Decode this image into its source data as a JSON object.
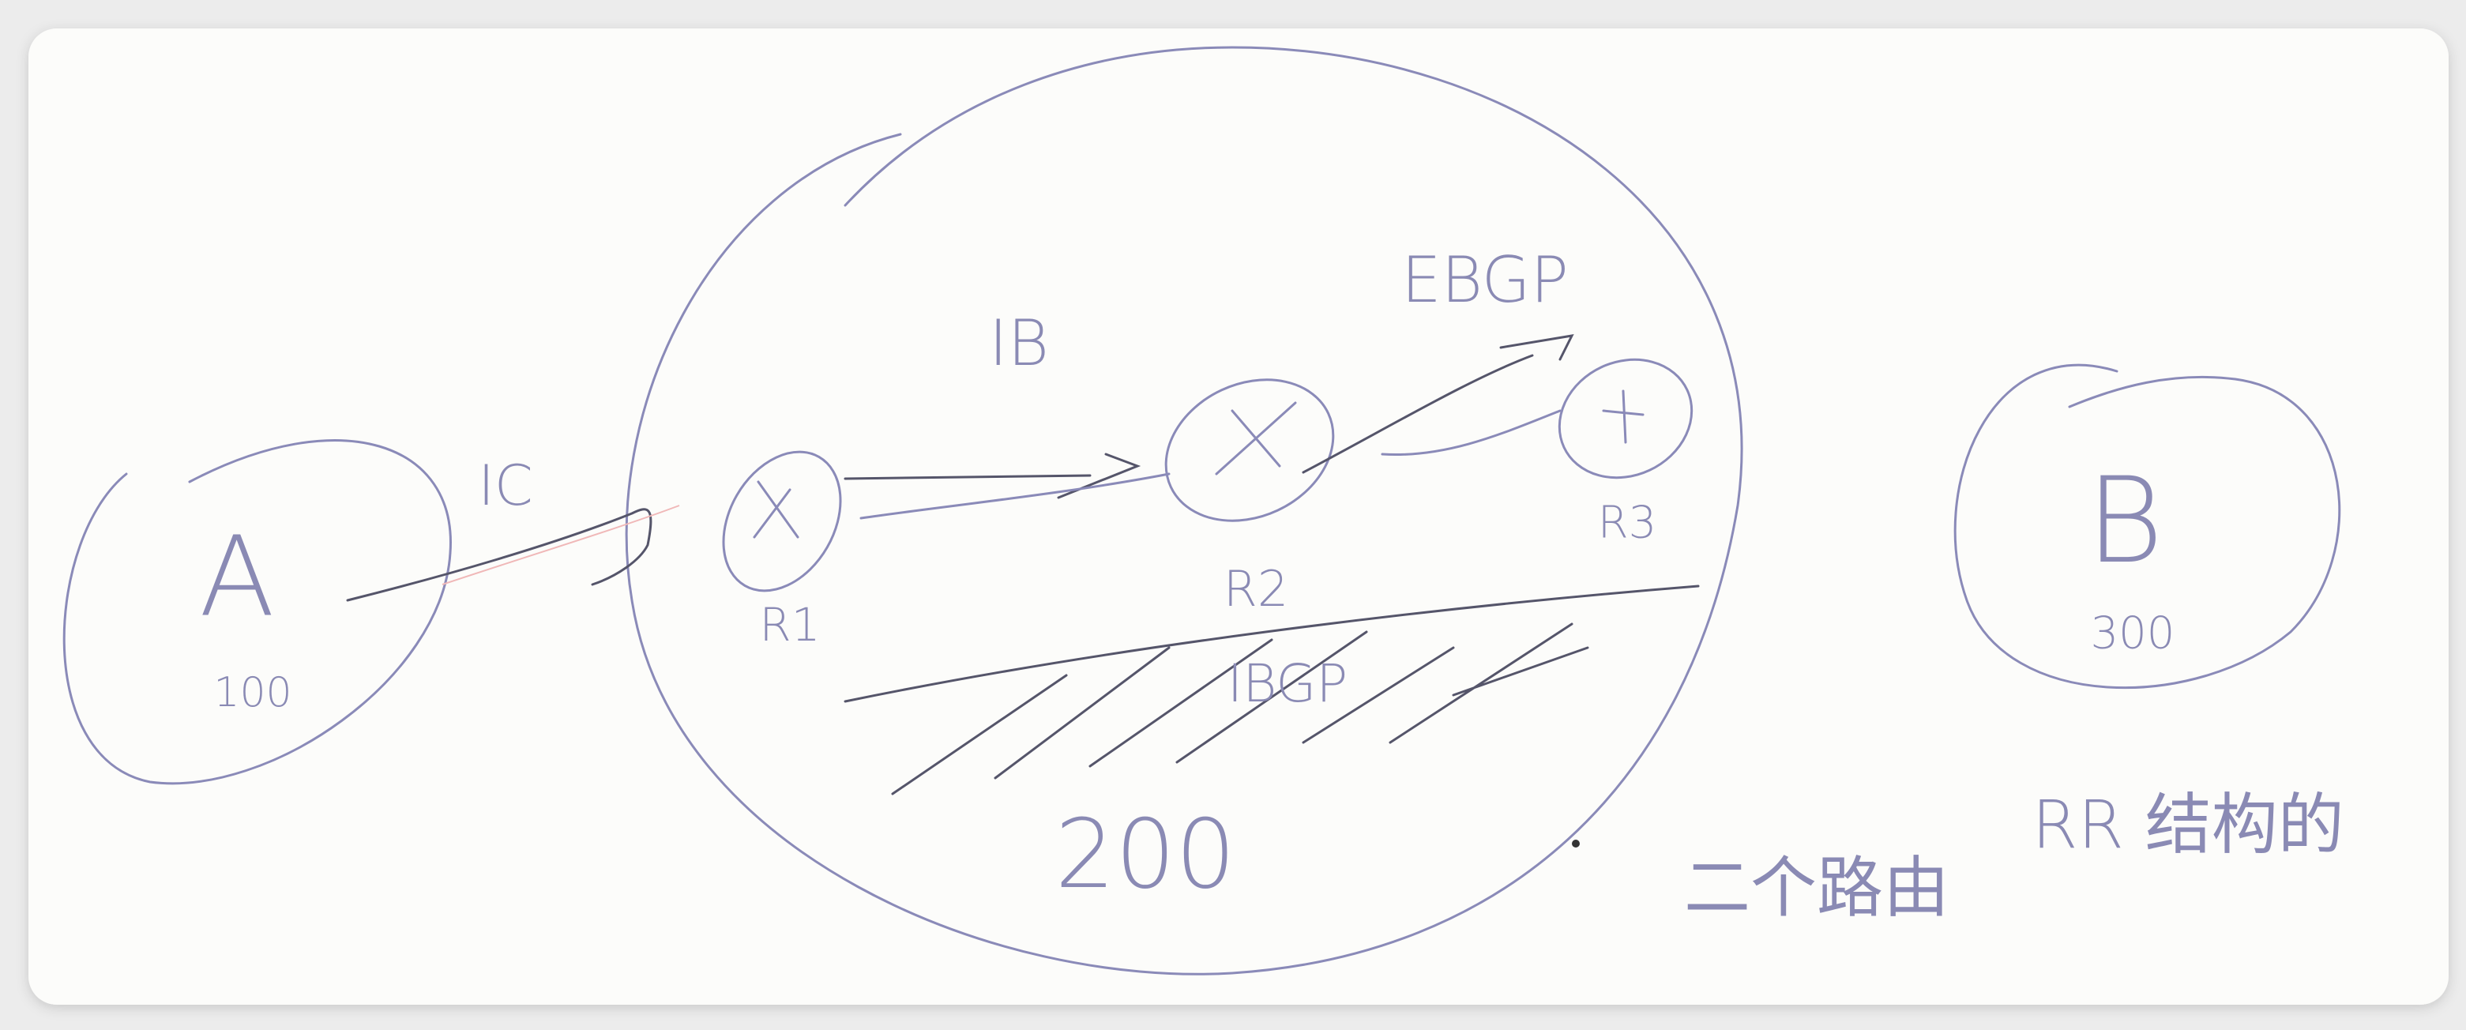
{
  "nodes": [
    {
      "label": "A",
      "as": "100"
    },
    {
      "label": "R1"
    },
    {
      "label": "R2"
    },
    {
      "label": "R3"
    },
    {
      "label": "B",
      "as": "300"
    }
  ],
  "cloud": {
    "as": "200"
  },
  "links": [
    {
      "label": "IC"
    },
    {
      "label": "IB"
    },
    {
      "label": "EBGP"
    }
  ],
  "hatch_label": "IBGP",
  "notes": [
    "二个路由",
    "RR 结构的"
  ]
}
